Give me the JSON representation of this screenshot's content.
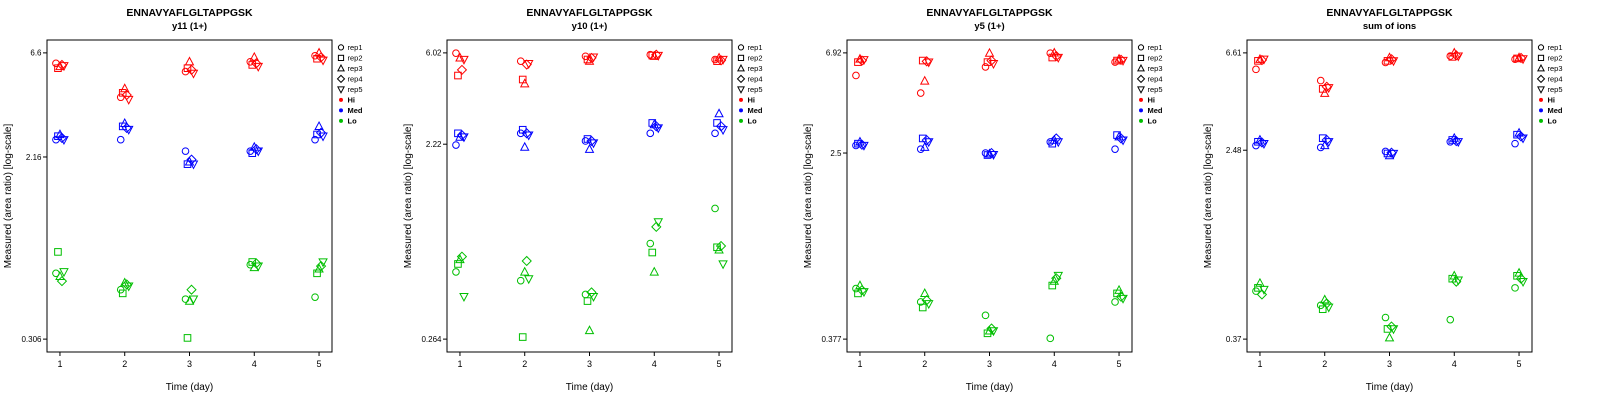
{
  "figure": {
    "peptide": "ENNAVYAFLGLTAPPGSK",
    "background": "#ffffff"
  },
  "legend": {
    "reps": [
      "rep1",
      "rep2",
      "rep3",
      "rep4",
      "rep5"
    ],
    "marker_shapes": [
      "circle",
      "square",
      "triangle-up",
      "diamond",
      "triangle-down"
    ],
    "levels": [
      {
        "name": "Hi",
        "color": "#FF0000"
      },
      {
        "name": "Med",
        "color": "#0000FF"
      },
      {
        "name": "Lo",
        "color": "#00BF00"
      }
    ]
  },
  "chart_data": [
    {
      "type": "scatter",
      "title": "ENNAVYAFLGLTAPPGSK",
      "subtitle": "y11 (1+)",
      "xlabel": "Time (day)",
      "ylabel": "Measured (area ratio) [log-scale]",
      "x": [
        1,
        2,
        3,
        4,
        5
      ],
      "yticks": [
        0.306,
        2.16,
        6.6
      ],
      "yscale": "log",
      "series": [
        {
          "level": "Hi",
          "reps": [
            [
              5.9,
              4.1,
              5.4,
              6.0,
              6.4
            ],
            [
              5.6,
              4.3,
              5.6,
              5.8,
              6.2
            ],
            [
              5.7,
              4.5,
              6.0,
              6.3,
              6.6
            ],
            [
              5.8,
              4.2,
              5.5,
              5.9,
              6.3
            ],
            [
              5.75,
              4.0,
              5.3,
              5.7,
              6.1
            ]
          ]
        },
        {
          "level": "Med",
          "reps": [
            [
              2.6,
              2.6,
              2.3,
              2.3,
              2.6
            ],
            [
              2.7,
              3.0,
              2.0,
              2.25,
              2.75
            ],
            [
              2.75,
              3.1,
              2.05,
              2.4,
              3.0
            ],
            [
              2.65,
              2.95,
              2.1,
              2.35,
              2.8
            ],
            [
              2.6,
              2.9,
              2.0,
              2.3,
              2.7
            ]
          ]
        },
        {
          "level": "Lo",
          "reps": [
            [
              0.62,
              0.52,
              0.47,
              0.68,
              0.48
            ],
            [
              0.78,
              0.5,
              0.31,
              0.7,
              0.62
            ],
            [
              0.6,
              0.56,
              0.46,
              0.66,
              0.65
            ],
            [
              0.57,
              0.55,
              0.52,
              0.69,
              0.67
            ],
            [
              0.63,
              0.54,
              0.47,
              0.67,
              0.7
            ]
          ]
        }
      ]
    },
    {
      "type": "scatter",
      "title": "ENNAVYAFLGLTAPPGSK",
      "subtitle": "y10 (1+)",
      "xlabel": "Time (day)",
      "ylabel": "Measured (area ratio) [log-scale]",
      "x": [
        1,
        2,
        3,
        4,
        5
      ],
      "yticks": [
        0.264,
        2.22,
        6.02
      ],
      "yscale": "log",
      "series": [
        {
          "level": "Hi",
          "reps": [
            [
              6.0,
              5.5,
              5.8,
              5.9,
              5.6
            ],
            [
              4.7,
              4.5,
              5.6,
              5.85,
              5.5
            ],
            [
              5.7,
              4.3,
              5.5,
              5.8,
              5.7
            ],
            [
              5.0,
              5.3,
              5.7,
              5.9,
              5.55
            ],
            [
              5.6,
              5.35,
              5.75,
              5.85,
              5.6
            ]
          ]
        },
        {
          "level": "Med",
          "reps": [
            [
              2.2,
              2.5,
              2.3,
              2.5,
              2.5
            ],
            [
              2.5,
              2.6,
              2.35,
              2.8,
              2.8
            ],
            [
              2.4,
              2.15,
              2.1,
              2.75,
              3.1
            ],
            [
              2.45,
              2.5,
              2.3,
              2.7,
              2.7
            ],
            [
              2.4,
              2.45,
              2.25,
              2.65,
              2.6
            ]
          ]
        },
        {
          "level": "Lo",
          "reps": [
            [
              0.55,
              0.5,
              0.43,
              0.75,
              1.1
            ],
            [
              0.6,
              0.27,
              0.4,
              0.68,
              0.72
            ],
            [
              0.63,
              0.55,
              0.29,
              0.55,
              0.7
            ],
            [
              0.65,
              0.62,
              0.44,
              0.9,
              0.73
            ],
            [
              0.42,
              0.51,
              0.42,
              0.95,
              0.6
            ]
          ]
        }
      ]
    },
    {
      "type": "scatter",
      "title": "ENNAVYAFLGLTAPPGSK",
      "subtitle": "y5 (1+)",
      "xlabel": "Time (day)",
      "ylabel": "Measured (area ratio) [log-scale]",
      "x": [
        1,
        2,
        3,
        4,
        5
      ],
      "yticks": [
        0.377,
        2.5,
        6.92
      ],
      "yscale": "log",
      "series": [
        {
          "level": "Hi",
          "reps": [
            [
              5.5,
              4.6,
              6.0,
              6.9,
              6.3
            ],
            [
              6.3,
              6.4,
              6.3,
              6.6,
              6.4
            ],
            [
              6.5,
              5.2,
              6.9,
              6.92,
              6.5
            ],
            [
              6.4,
              6.35,
              6.4,
              6.7,
              6.45
            ],
            [
              6.45,
              6.3,
              6.2,
              6.6,
              6.4
            ]
          ]
        },
        {
          "level": "Med",
          "reps": [
            [
              2.7,
              2.6,
              2.5,
              2.8,
              2.6
            ],
            [
              2.75,
              2.9,
              2.45,
              2.75,
              3.0
            ],
            [
              2.8,
              2.65,
              2.48,
              2.85,
              2.95
            ],
            [
              2.72,
              2.85,
              2.5,
              2.9,
              2.9
            ],
            [
              2.7,
              2.8,
              2.46,
              2.8,
              2.85
            ]
          ]
        },
        {
          "level": "Lo",
          "reps": [
            [
              0.63,
              0.55,
              0.48,
              0.38,
              0.55
            ],
            [
              0.6,
              0.52,
              0.4,
              0.65,
              0.6
            ],
            [
              0.65,
              0.6,
              0.41,
              0.68,
              0.62
            ],
            [
              0.62,
              0.56,
              0.42,
              0.7,
              0.58
            ],
            [
              0.61,
              0.54,
              0.41,
              0.72,
              0.57
            ]
          ]
        }
      ]
    },
    {
      "type": "scatter",
      "title": "ENNAVYAFLGLTAPPGSK",
      "subtitle": "sum of ions",
      "xlabel": "Time (day)",
      "ylabel": "Measured (area ratio) [log-scale]",
      "x": [
        1,
        2,
        3,
        4,
        5
      ],
      "yticks": [
        0.37,
        2.48,
        6.61
      ],
      "yscale": "log",
      "series": [
        {
          "level": "Hi",
          "reps": [
            [
              5.6,
              5.0,
              6.0,
              6.4,
              6.2
            ],
            [
              6.1,
              4.6,
              6.1,
              6.35,
              6.25
            ],
            [
              6.2,
              4.4,
              6.3,
              6.61,
              6.3
            ],
            [
              6.15,
              4.7,
              6.2,
              6.45,
              6.28
            ],
            [
              6.2,
              4.65,
              6.1,
              6.4,
              6.22
            ]
          ]
        },
        {
          "level": "Med",
          "reps": [
            [
              2.6,
              2.55,
              2.45,
              2.7,
              2.65
            ],
            [
              2.7,
              2.8,
              2.4,
              2.75,
              2.9
            ],
            [
              2.75,
              2.6,
              2.35,
              2.8,
              2.95
            ],
            [
              2.68,
              2.75,
              2.42,
              2.72,
              2.85
            ],
            [
              2.65,
              2.7,
              2.4,
              2.7,
              2.8
            ]
          ]
        },
        {
          "level": "Lo",
          "reps": [
            [
              0.6,
              0.52,
              0.46,
              0.45,
              0.62
            ],
            [
              0.62,
              0.5,
              0.41,
              0.68,
              0.7
            ],
            [
              0.65,
              0.55,
              0.375,
              0.7,
              0.72
            ],
            [
              0.58,
              0.53,
              0.42,
              0.66,
              0.68
            ],
            [
              0.61,
              0.51,
              0.41,
              0.67,
              0.66
            ]
          ]
        }
      ]
    }
  ]
}
